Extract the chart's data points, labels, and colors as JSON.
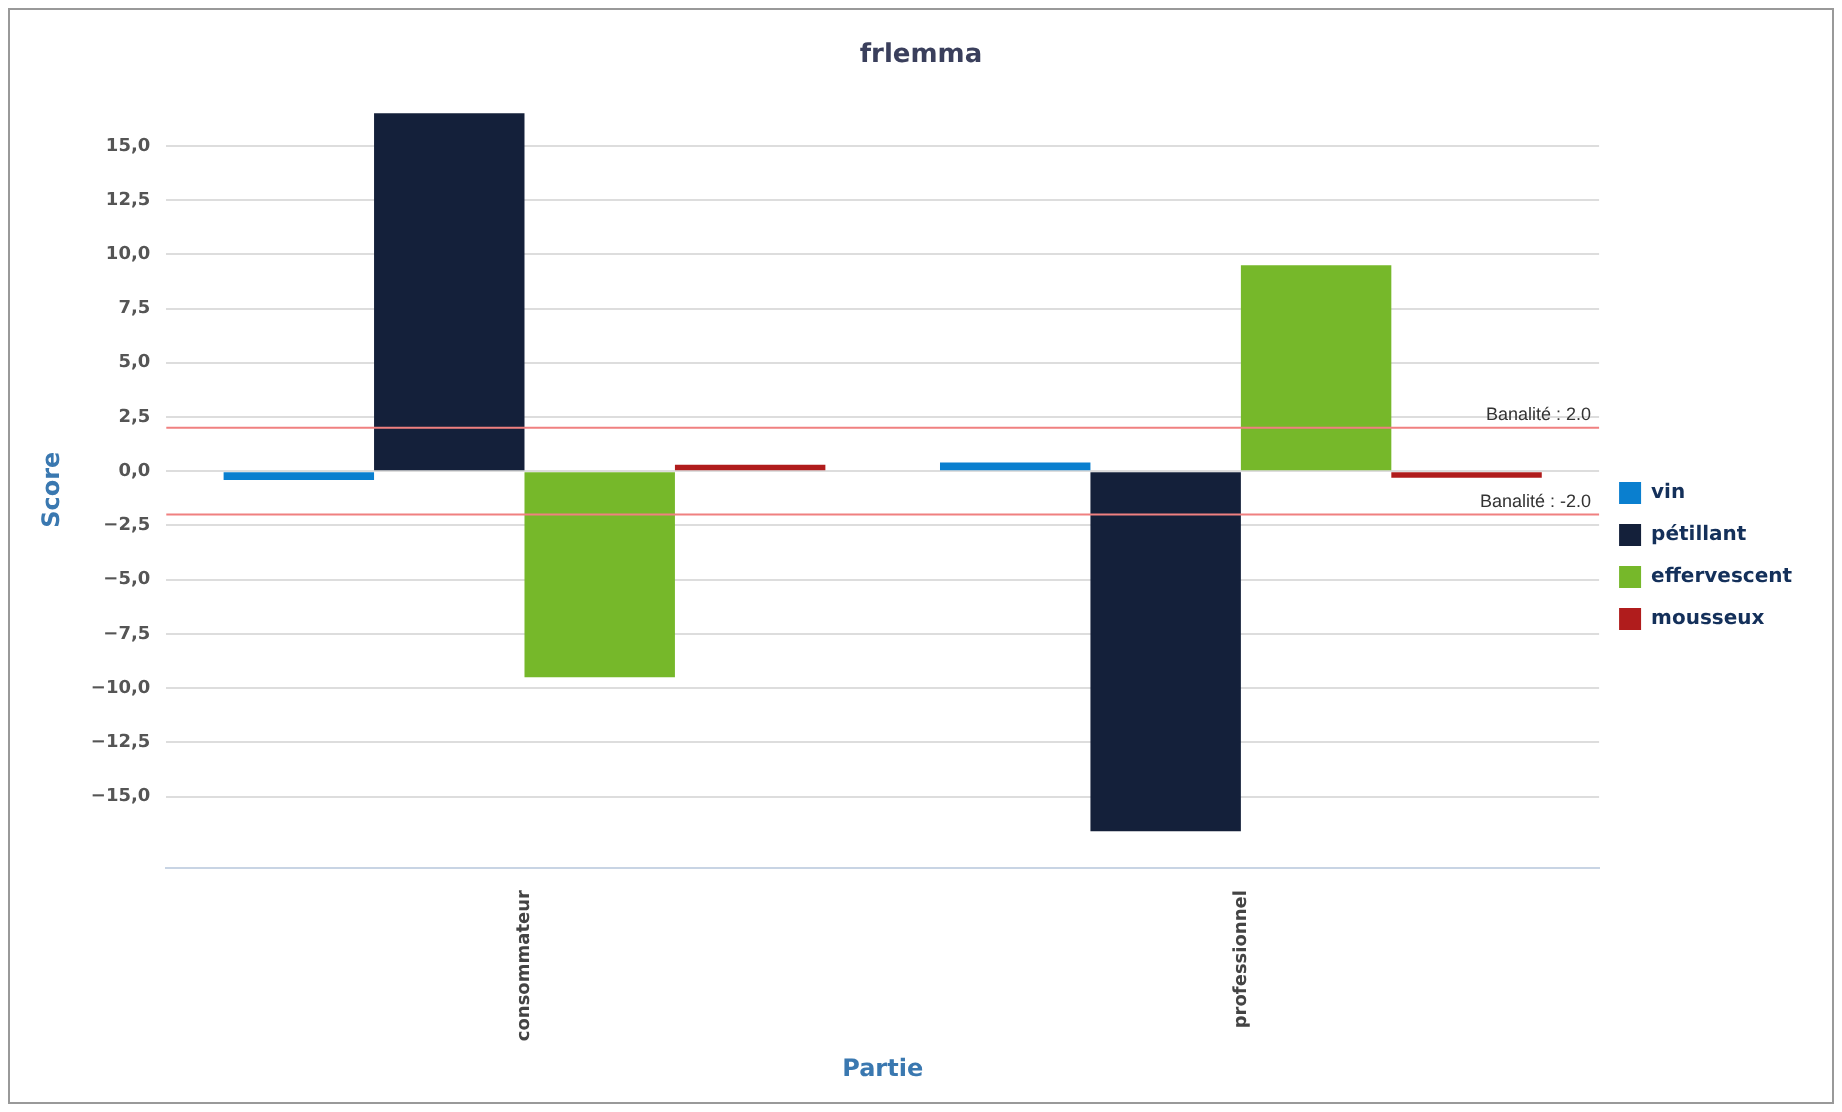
{
  "chart_data": {
    "type": "bar",
    "title": "frlemma",
    "xlabel": "Partie",
    "ylabel": "Score",
    "categories": [
      "consommateur",
      "professionnel"
    ],
    "series": [
      {
        "name": "vin",
        "color": "#0a7fcf",
        "values": [
          -0.4,
          0.4
        ]
      },
      {
        "name": "pétillant",
        "color": "#14203a",
        "values": [
          16.5,
          -16.6
        ]
      },
      {
        "name": "effervescent",
        "color": "#76b82a",
        "values": [
          -9.5,
          9.5
        ]
      },
      {
        "name": "mousseux",
        "color": "#b01c1c",
        "values": [
          0.3,
          -0.3
        ]
      }
    ],
    "ylim": [
      -18.3,
      16.6
    ],
    "yticks": [
      {
        "value": -15,
        "label": "−15,0"
      },
      {
        "value": -12.5,
        "label": "−12,5"
      },
      {
        "value": -10,
        "label": "−10,0"
      },
      {
        "value": -7.5,
        "label": "−7,5"
      },
      {
        "value": -5,
        "label": "−5,0"
      },
      {
        "value": -2.5,
        "label": "−2,5"
      },
      {
        "value": 0,
        "label": "0,0"
      },
      {
        "value": 2.5,
        "label": "2,5"
      },
      {
        "value": 5,
        "label": "5,0"
      },
      {
        "value": 7.5,
        "label": "7,5"
      },
      {
        "value": 10,
        "label": "10,0"
      },
      {
        "value": 12.5,
        "label": "12,5"
      },
      {
        "value": 15,
        "label": "15,0"
      }
    ],
    "ref_lines": [
      {
        "axis": "y",
        "value": 2,
        "label": "Banalité : 2.0",
        "color": "#f08080"
      },
      {
        "axis": "y",
        "value": -2,
        "label": "Banalité : -2.0",
        "color": "#f08080"
      }
    ],
    "grid": "y",
    "legend": "right"
  }
}
